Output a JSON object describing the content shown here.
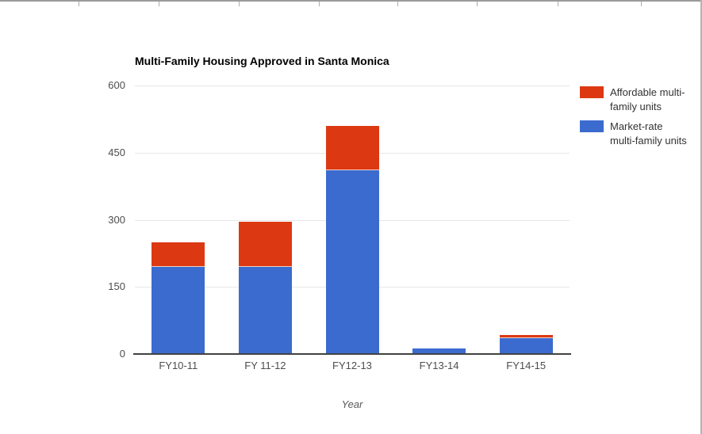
{
  "window": {
    "top_ruler": {
      "line_color": "#9a9a9a",
      "tick_color": "#adadad"
    },
    "right_border_color": "#b3b3b3"
  },
  "chart_data": {
    "type": "bar",
    "stacked": true,
    "title": "Multi-Family Housing Approved in Santa Monica",
    "xlabel": "Year",
    "ylabel": "",
    "categories": [
      "FY10-11",
      "FY 11-12",
      "FY12-13",
      "FY13-14",
      "FY14-15"
    ],
    "series": [
      {
        "name": "Market-rate multi-family units",
        "color": "#3b6bce",
        "values": [
          195,
          195,
          410,
          12,
          35
        ]
      },
      {
        "name": "Affordable multi-family units",
        "color": "#dc3912",
        "values": [
          55,
          100,
          100,
          0,
          7
        ]
      }
    ],
    "ylim": [
      0,
      600
    ],
    "yticks": [
      0,
      150,
      300,
      450,
      600
    ],
    "grid": true,
    "colors": {
      "grid_color": "#e7e7e7",
      "baseline_color": "#424242",
      "tick_label_color": "#4d4d4d",
      "title_color": "#000000"
    },
    "legend": {
      "position": "right",
      "items": [
        {
          "name": "Affordable multi-family units",
          "display_lines": [
            "Affordable multi-",
            "family units"
          ],
          "color": "#dc3912"
        },
        {
          "name": "Market-rate multi-family units",
          "display_lines": [
            "Market-rate",
            "multi-family units"
          ],
          "color": "#3b6bce"
        }
      ]
    }
  }
}
